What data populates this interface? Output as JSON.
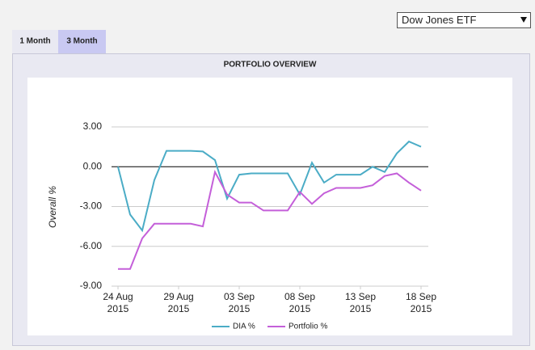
{
  "dropdown": {
    "selected": "Dow Jones ETF"
  },
  "tabs": [
    "1 Month",
    "3 Month"
  ],
  "chart_data": {
    "type": "line",
    "title": "PORTFOLIO OVERVIEW",
    "y_label": "Overall %",
    "x": [
      "2015-08-24",
      "2015-08-25",
      "2015-08-26",
      "2015-08-27",
      "2015-08-28",
      "2015-08-29",
      "2015-08-30",
      "2015-08-31",
      "2015-09-01",
      "2015-09-02",
      "2015-09-03",
      "2015-09-04",
      "2015-09-05",
      "2015-09-06",
      "2015-09-07",
      "2015-09-08",
      "2015-09-09",
      "2015-09-10",
      "2015-09-11",
      "2015-09-12",
      "2015-09-13",
      "2015-09-14",
      "2015-09-15",
      "2015-09-16",
      "2015-09-17",
      "2015-09-18"
    ],
    "series": [
      {
        "name": "DIA %",
        "color": "#4bacc6",
        "values": [
          0.0,
          -3.6,
          -4.8,
          -1.0,
          1.2,
          1.2,
          1.2,
          1.15,
          0.5,
          -2.4,
          -0.6,
          -0.5,
          -0.5,
          -0.5,
          -0.5,
          -2.1,
          0.3,
          -1.2,
          -0.6,
          -0.6,
          -0.6,
          0.0,
          -0.4,
          1.0,
          1.9,
          1.5
        ]
      },
      {
        "name": "Portfolio %",
        "color": "#c45fd9",
        "values": [
          -7.7,
          -7.7,
          -5.4,
          -4.3,
          -4.3,
          -4.3,
          -4.3,
          -4.5,
          -0.4,
          -2.1,
          -2.7,
          -2.7,
          -3.3,
          -3.3,
          -3.3,
          -1.9,
          -2.8,
          -2.0,
          -1.6,
          -1.6,
          -1.6,
          -1.4,
          -0.7,
          -0.5,
          -1.2,
          -1.8
        ]
      }
    ],
    "xlim": [
      "2015-08-24",
      "2015-09-18"
    ],
    "xticks": [
      {
        "value": "2015-08-24",
        "label": "24 Aug\n2015"
      },
      {
        "value": "2015-08-29",
        "label": "29 Aug\n2015"
      },
      {
        "value": "2015-09-03",
        "label": "03 Sep\n2015"
      },
      {
        "value": "2015-09-08",
        "label": "08 Sep\n2015"
      },
      {
        "value": "2015-09-13",
        "label": "13 Sep\n2015"
      },
      {
        "value": "2015-09-18",
        "label": "18 Sep\n2015"
      }
    ],
    "ylim": [
      -9,
      3
    ],
    "yticks": [
      {
        "value": -9,
        "label": "-9.00"
      },
      {
        "value": -6,
        "label": "-6.00"
      },
      {
        "value": -3,
        "label": "-3.00"
      },
      {
        "value": 0,
        "label": "0.00"
      },
      {
        "value": 3,
        "label": "3.00"
      }
    ],
    "grid": true,
    "legend": "bottom"
  }
}
